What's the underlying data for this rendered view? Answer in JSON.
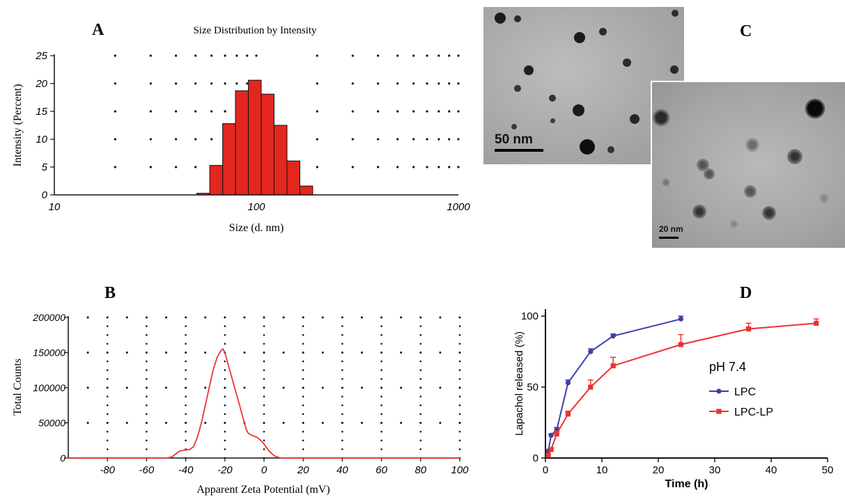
{
  "panel_labels": {
    "a": "A",
    "b": "B",
    "c": "C",
    "d": "D"
  },
  "tem": {
    "scale_large": "50 nm",
    "scale_small": "20 nm"
  },
  "colors": {
    "bar_fill": "#e3261e",
    "zeta_line": "#ee3333",
    "lpc": "#3a3fa8",
    "lpc_lp": "#ee3030"
  },
  "chart_data": [
    {
      "id": "A",
      "type": "bar",
      "title": "Size Distribution by Intensity",
      "xlabel": "Size (d. nm)",
      "ylabel": "Intensity (Percent)",
      "xscale": "log",
      "xlim": [
        10,
        1000
      ],
      "ylim": [
        0,
        25
      ],
      "xticks": [
        10,
        100,
        1000
      ],
      "xtick_labels": [
        "10",
        "100",
        "1000"
      ],
      "yticks": [
        0,
        5,
        10,
        15,
        20,
        25
      ],
      "ytick_labels": [
        "0",
        "5",
        "10",
        "15",
        "20",
        "25"
      ],
      "grid": "dotted",
      "bins": [
        {
          "lo": 50.7,
          "hi": 58.8,
          "value": 0.3
        },
        {
          "lo": 58.8,
          "hi": 68.1,
          "value": 5.3
        },
        {
          "lo": 68.1,
          "hi": 78.8,
          "value": 12.8
        },
        {
          "lo": 78.8,
          "hi": 91.3,
          "value": 18.7
        },
        {
          "lo": 91.3,
          "hi": 105.7,
          "value": 20.6
        },
        {
          "lo": 105.7,
          "hi": 122.4,
          "value": 18.1
        },
        {
          "lo": 122.4,
          "hi": 141.8,
          "value": 12.5
        },
        {
          "lo": 141.8,
          "hi": 164.2,
          "value": 6.1
        },
        {
          "lo": 164.2,
          "hi": 190.1,
          "value": 1.6
        }
      ]
    },
    {
      "id": "B",
      "type": "line",
      "xlabel": "Apparent Zeta Potential (mV)",
      "ylabel": "Total Counts",
      "xlim": [
        -100,
        100
      ],
      "ylim": [
        0,
        200000
      ],
      "xticks": [
        -80,
        -60,
        -40,
        -20,
        0,
        20,
        40,
        60,
        80,
        100
      ],
      "xtick_labels": [
        "-80",
        "-60",
        "-40",
        "-20",
        "0",
        "20",
        "40",
        "60",
        "80",
        "100"
      ],
      "yticks": [
        0,
        50000,
        100000,
        150000,
        200000
      ],
      "ytick_labels": [
        "0",
        "50000",
        "100000",
        "150000",
        "200000"
      ],
      "grid": "dotted",
      "series": [
        {
          "x": [
            -100,
            -50,
            -47,
            -45,
            -43,
            -41,
            -38,
            -36,
            -34,
            -32,
            -30,
            -28,
            -26,
            -24,
            -22,
            -21,
            -20,
            -18,
            -16,
            -14,
            -12,
            -10,
            -9,
            -8,
            -6,
            -4,
            -2,
            0,
            2,
            4,
            6,
            8,
            9,
            100
          ],
          "y": [
            0,
            0,
            1500,
            6000,
            10000,
            11000,
            12000,
            16000,
            30000,
            50000,
            75000,
            100000,
            125000,
            143000,
            153000,
            155000,
            150000,
            130000,
            110000,
            90000,
            70000,
            50000,
            40000,
            35000,
            32000,
            30000,
            26000,
            20000,
            12000,
            6000,
            2000,
            500,
            0,
            0
          ]
        }
      ]
    },
    {
      "id": "D",
      "type": "line",
      "xlabel": "Time (h)",
      "ylabel": "Lapachol released (%)",
      "xlim": [
        0,
        50
      ],
      "ylim": [
        0,
        105
      ],
      "xticks": [
        0,
        10,
        20,
        30,
        40,
        50
      ],
      "xtick_labels": [
        "0",
        "10",
        "20",
        "30",
        "40",
        "50"
      ],
      "yticks": [
        0,
        50,
        100
      ],
      "ytick_labels": [
        "0",
        "50",
        "100"
      ],
      "legend_title": "pH 7.4",
      "legend_position": "right",
      "series": [
        {
          "name": "LPC",
          "marker": "circle",
          "x": [
            0.5,
            1,
            2,
            4,
            8,
            12,
            24
          ],
          "y": [
            5,
            16,
            20,
            53,
            75,
            86,
            98
          ],
          "err": [
            0,
            1,
            1.5,
            2,
            2,
            1.5,
            2
          ]
        },
        {
          "name": "LPC-LP",
          "marker": "square",
          "x": [
            0.5,
            1,
            2,
            4,
            8,
            12,
            24,
            36,
            48
          ],
          "y": [
            2,
            6,
            17,
            31,
            50,
            65,
            80,
            91,
            95
          ],
          "err": [
            0,
            1,
            2,
            2,
            5,
            6,
            7,
            4,
            3
          ]
        }
      ]
    }
  ]
}
